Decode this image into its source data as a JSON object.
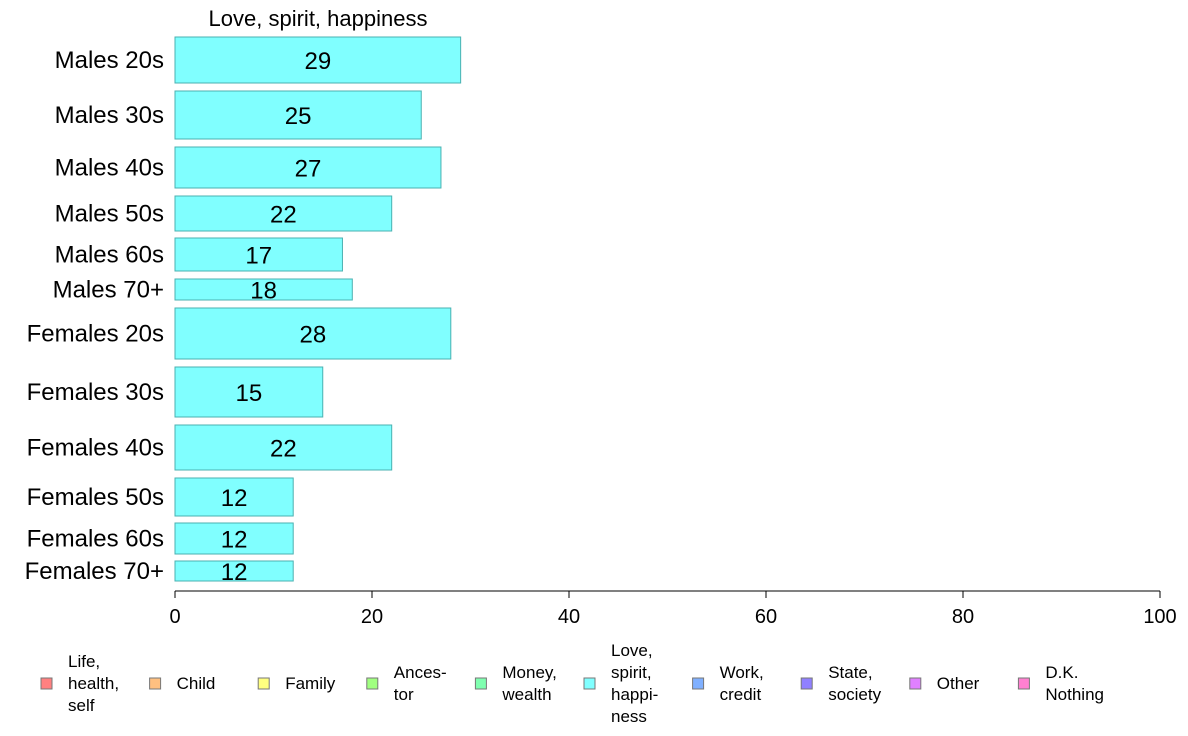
{
  "chart_data": {
    "type": "bar",
    "orientation": "horizontal",
    "title": "Love, spirit, happiness",
    "xlabel": "",
    "ylabel": "",
    "xlim": [
      0,
      100
    ],
    "xticks": [
      0,
      20,
      40,
      60,
      80,
      100
    ],
    "grid": false,
    "legend_position": "bottom",
    "categories": [
      "Males 20s",
      "Males 30s",
      "Males 40s",
      "Males 50s",
      "Males 60s",
      "Males 70+",
      "Females 20s",
      "Females 30s",
      "Females 40s",
      "Females 50s",
      "Females 60s",
      "Females 70+"
    ],
    "values": [
      29,
      25,
      27,
      22,
      17,
      18,
      28,
      15,
      22,
      12,
      12,
      12
    ],
    "value_labels": [
      "29",
      "25",
      "27",
      "22",
      "17",
      "18",
      "28",
      "15",
      "22",
      "12",
      "12",
      "12"
    ],
    "bar_color": "#80ffff",
    "bar_border": "#4ab0b0",
    "legend": [
      {
        "lines": [
          "Life,",
          "health,",
          "self"
        ],
        "color": "#ff8080"
      },
      {
        "lines": [
          "Child"
        ],
        "color": "#ffc080"
      },
      {
        "lines": [
          "Family"
        ],
        "color": "#ffff80"
      },
      {
        "lines": [
          "Ances-",
          "tor"
        ],
        "color": "#a0ff80"
      },
      {
        "lines": [
          "Money,",
          "wealth"
        ],
        "color": "#80ffb0"
      },
      {
        "lines": [
          "Love,",
          "spirit,",
          "happi-",
          "ness"
        ],
        "color": "#80ffff"
      },
      {
        "lines": [
          "Work,",
          "credit"
        ],
        "color": "#80b0ff"
      },
      {
        "lines": [
          "State,",
          "society"
        ],
        "color": "#9080ff"
      },
      {
        "lines": [
          "Other"
        ],
        "color": "#e080ff"
      },
      {
        "lines": [
          "D.K.",
          "Nothing"
        ],
        "color": "#ff80d0"
      }
    ]
  }
}
